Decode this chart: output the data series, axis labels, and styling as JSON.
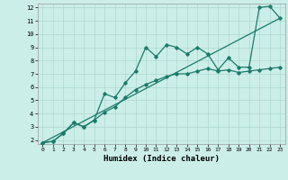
{
  "xlabel": "Humidex (Indice chaleur)",
  "background_color": "#cceee8",
  "grid_color": "#aad8d0",
  "line_color": "#1a7a6a",
  "xlim": [
    -0.5,
    23.5
  ],
  "ylim": [
    1.7,
    12.3
  ],
  "xticks": [
    0,
    1,
    2,
    3,
    4,
    5,
    6,
    7,
    8,
    9,
    10,
    11,
    12,
    13,
    14,
    15,
    16,
    17,
    18,
    19,
    20,
    21,
    22,
    23
  ],
  "yticks": [
    2,
    3,
    4,
    5,
    6,
    7,
    8,
    9,
    10,
    11,
    12
  ],
  "line1_x": [
    0,
    1,
    2,
    3,
    4,
    5,
    6,
    7,
    8,
    9,
    10,
    11,
    12,
    13,
    14,
    15,
    16,
    17,
    18,
    19,
    20,
    21,
    22,
    23
  ],
  "line1_y": [
    1.8,
    1.9,
    2.5,
    3.3,
    3.0,
    3.5,
    5.5,
    5.2,
    6.3,
    7.2,
    9.0,
    8.3,
    9.2,
    9.0,
    8.5,
    9.0,
    8.5,
    7.3,
    8.2,
    7.5,
    7.5,
    12.0,
    12.1,
    11.2
  ],
  "line2_x": [
    0,
    1,
    2,
    3,
    4,
    5,
    6,
    7,
    8,
    9,
    10,
    11,
    12,
    13,
    14,
    15,
    16,
    17,
    18,
    19,
    20,
    21,
    22,
    23
  ],
  "line2_y": [
    1.8,
    1.9,
    2.5,
    3.3,
    3.0,
    3.5,
    4.1,
    4.5,
    5.2,
    5.8,
    6.2,
    6.5,
    6.8,
    7.0,
    7.0,
    7.2,
    7.4,
    7.2,
    7.3,
    7.1,
    7.2,
    7.3,
    7.4,
    7.5
  ],
  "line3_x": [
    0,
    23
  ],
  "line3_y": [
    1.8,
    11.2
  ],
  "marker_size": 1.8,
  "linewidth": 0.9
}
